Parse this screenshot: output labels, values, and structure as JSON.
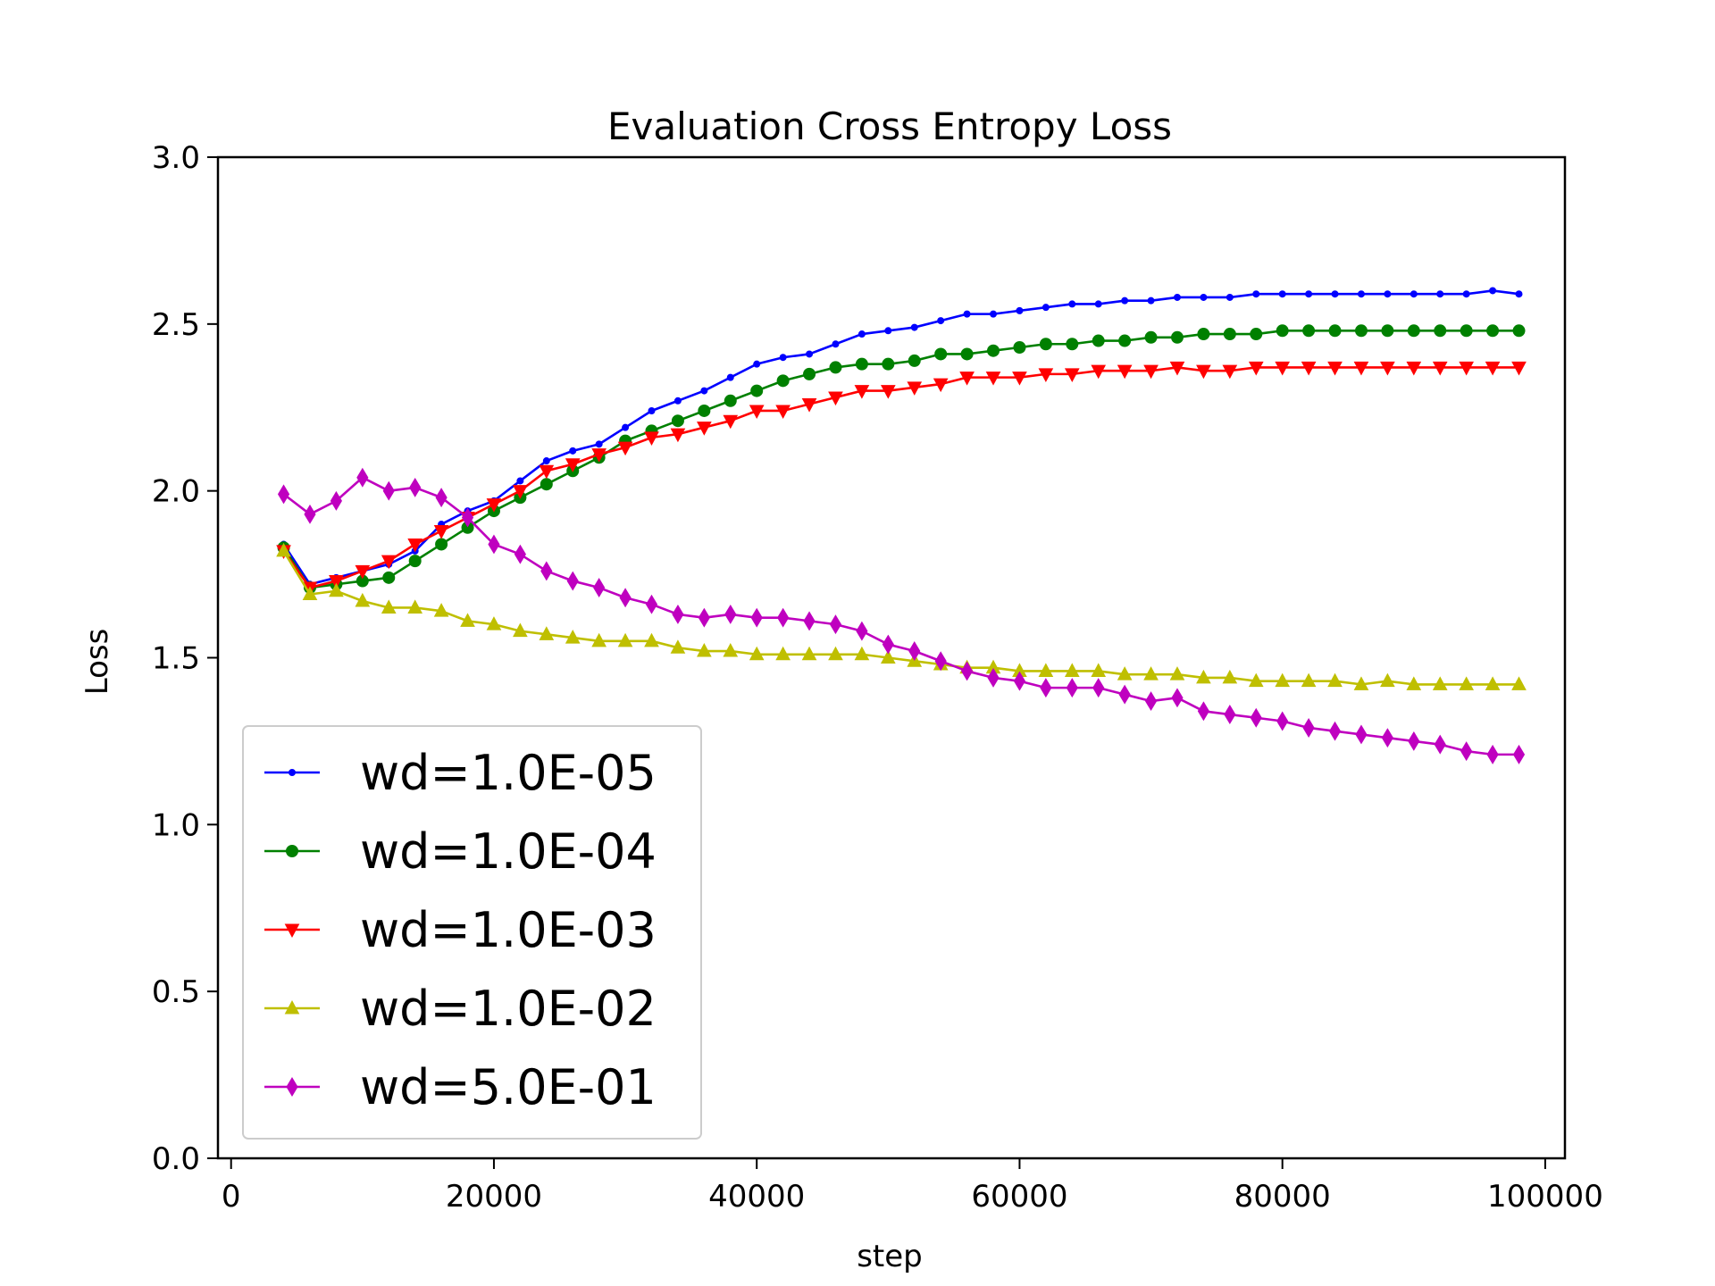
{
  "chart_data": {
    "type": "line",
    "title": "Evaluation Cross Entropy Loss",
    "xlabel": "step",
    "ylabel": "Loss",
    "xlim": [
      -1000,
      101500
    ],
    "ylim": [
      0.0,
      3.0
    ],
    "xticks": [
      0,
      20000,
      40000,
      60000,
      80000,
      100000
    ],
    "xtick_labels": [
      "0",
      "20000",
      "40000",
      "60000",
      "80000",
      "100000"
    ],
    "yticks": [
      0.0,
      0.5,
      1.0,
      1.5,
      2.0,
      2.5,
      3.0
    ],
    "ytick_labels": [
      "0.0",
      "0.5",
      "1.0",
      "1.5",
      "2.0",
      "2.5",
      "3.0"
    ],
    "grid": false,
    "legend_position": "lower-left",
    "x": [
      4000,
      6000,
      8000,
      10000,
      12000,
      14000,
      16000,
      18000,
      20000,
      22000,
      24000,
      26000,
      28000,
      30000,
      32000,
      34000,
      36000,
      38000,
      40000,
      42000,
      44000,
      46000,
      48000,
      50000,
      52000,
      54000,
      56000,
      58000,
      60000,
      62000,
      64000,
      66000,
      68000,
      70000,
      72000,
      74000,
      76000,
      78000,
      80000,
      82000,
      84000,
      86000,
      88000,
      90000,
      92000,
      94000,
      96000,
      98000
    ],
    "series": [
      {
        "name": "wd=1.0E-05",
        "color": "#0000ff",
        "marker": "point",
        "values": [
          1.84,
          1.72,
          1.74,
          1.76,
          1.78,
          1.82,
          1.9,
          1.94,
          1.97,
          2.03,
          2.09,
          2.12,
          2.14,
          2.19,
          2.24,
          2.27,
          2.3,
          2.34,
          2.38,
          2.4,
          2.41,
          2.44,
          2.47,
          2.48,
          2.49,
          2.51,
          2.53,
          2.53,
          2.54,
          2.55,
          2.56,
          2.56,
          2.57,
          2.57,
          2.58,
          2.58,
          2.58,
          2.59,
          2.59,
          2.59,
          2.59,
          2.59,
          2.59,
          2.59,
          2.59,
          2.59,
          2.6,
          2.59
        ]
      },
      {
        "name": "wd=1.0E-04",
        "color": "#008000",
        "marker": "circle",
        "values": [
          1.83,
          1.71,
          1.72,
          1.73,
          1.74,
          1.79,
          1.84,
          1.89,
          1.94,
          1.98,
          2.02,
          2.06,
          2.1,
          2.15,
          2.18,
          2.21,
          2.24,
          2.27,
          2.3,
          2.33,
          2.35,
          2.37,
          2.38,
          2.38,
          2.39,
          2.41,
          2.41,
          2.42,
          2.43,
          2.44,
          2.44,
          2.45,
          2.45,
          2.46,
          2.46,
          2.47,
          2.47,
          2.47,
          2.48,
          2.48,
          2.48,
          2.48,
          2.48,
          2.48,
          2.48,
          2.48,
          2.48,
          2.48
        ]
      },
      {
        "name": "wd=1.0E-03",
        "color": "#ff0000",
        "marker": "triangle-down",
        "values": [
          1.82,
          1.71,
          1.73,
          1.76,
          1.79,
          1.84,
          1.88,
          1.92,
          1.96,
          2.0,
          2.06,
          2.08,
          2.11,
          2.13,
          2.16,
          2.17,
          2.19,
          2.21,
          2.24,
          2.24,
          2.26,
          2.28,
          2.3,
          2.3,
          2.31,
          2.32,
          2.34,
          2.34,
          2.34,
          2.35,
          2.35,
          2.36,
          2.36,
          2.36,
          2.37,
          2.36,
          2.36,
          2.37,
          2.37,
          2.37,
          2.37,
          2.37,
          2.37,
          2.37,
          2.37,
          2.37,
          2.37,
          2.37
        ]
      },
      {
        "name": "wd=1.0E-02",
        "color": "#bfbf00",
        "marker": "triangle-up",
        "values": [
          1.82,
          1.69,
          1.7,
          1.67,
          1.65,
          1.65,
          1.64,
          1.61,
          1.6,
          1.58,
          1.57,
          1.56,
          1.55,
          1.55,
          1.55,
          1.53,
          1.52,
          1.52,
          1.51,
          1.51,
          1.51,
          1.51,
          1.51,
          1.5,
          1.49,
          1.48,
          1.47,
          1.47,
          1.46,
          1.46,
          1.46,
          1.46,
          1.45,
          1.45,
          1.45,
          1.44,
          1.44,
          1.43,
          1.43,
          1.43,
          1.43,
          1.42,
          1.43,
          1.42,
          1.42,
          1.42,
          1.42,
          1.42
        ]
      },
      {
        "name": "wd=5.0E-01",
        "color": "#bf00bf",
        "marker": "thin-diamond",
        "values": [
          1.99,
          1.93,
          1.97,
          2.04,
          2.0,
          2.01,
          1.98,
          1.92,
          1.84,
          1.81,
          1.76,
          1.73,
          1.71,
          1.68,
          1.66,
          1.63,
          1.62,
          1.63,
          1.62,
          1.62,
          1.61,
          1.6,
          1.58,
          1.54,
          1.52,
          1.49,
          1.46,
          1.44,
          1.43,
          1.41,
          1.41,
          1.41,
          1.39,
          1.37,
          1.38,
          1.34,
          1.33,
          1.32,
          1.31,
          1.29,
          1.28,
          1.27,
          1.26,
          1.25,
          1.24,
          1.22,
          1.21,
          1.21
        ]
      }
    ]
  }
}
